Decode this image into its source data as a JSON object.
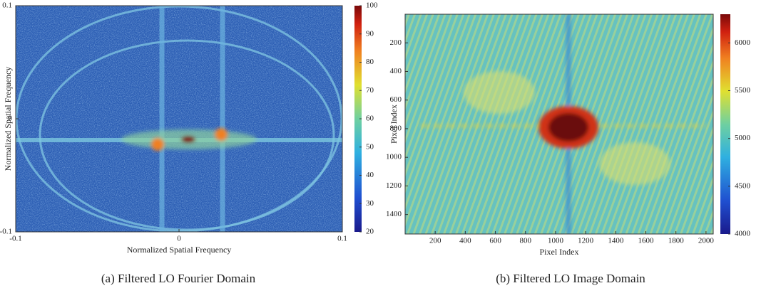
{
  "chart_data": [
    {
      "type": "heatmap",
      "caption": "(a) Filtered LO Fourier Domain",
      "xlabel": "Normalized Spatial Frequency",
      "ylabel": "Normalized Spatial Frequency",
      "xlim": [
        -0.1,
        0.1
      ],
      "ylim": [
        -0.1,
        0.1
      ],
      "xticks": [
        -0.1,
        0,
        0.1
      ],
      "yticks": [
        -0.1,
        0,
        0.1
      ],
      "clim": [
        20,
        100
      ],
      "cticks": [
        20,
        30,
        40,
        50,
        60,
        70,
        80,
        90,
        100
      ]
    },
    {
      "type": "heatmap",
      "caption": "(b) Filtered LO Image Domain",
      "xlabel": "Pixel Index",
      "ylabel": "Pixel Index",
      "xlim": [
        0,
        2048
      ],
      "ylim": [
        0,
        1536
      ],
      "yreverse": true,
      "xticks": [
        200,
        400,
        600,
        800,
        1000,
        1200,
        1400,
        1600,
        1800,
        2000
      ],
      "yticks": [
        200,
        400,
        600,
        800,
        1000,
        1200,
        1400
      ],
      "clim": [
        4000,
        6300
      ],
      "cticks": [
        4000,
        4500,
        5000,
        5500,
        6000
      ]
    }
  ]
}
